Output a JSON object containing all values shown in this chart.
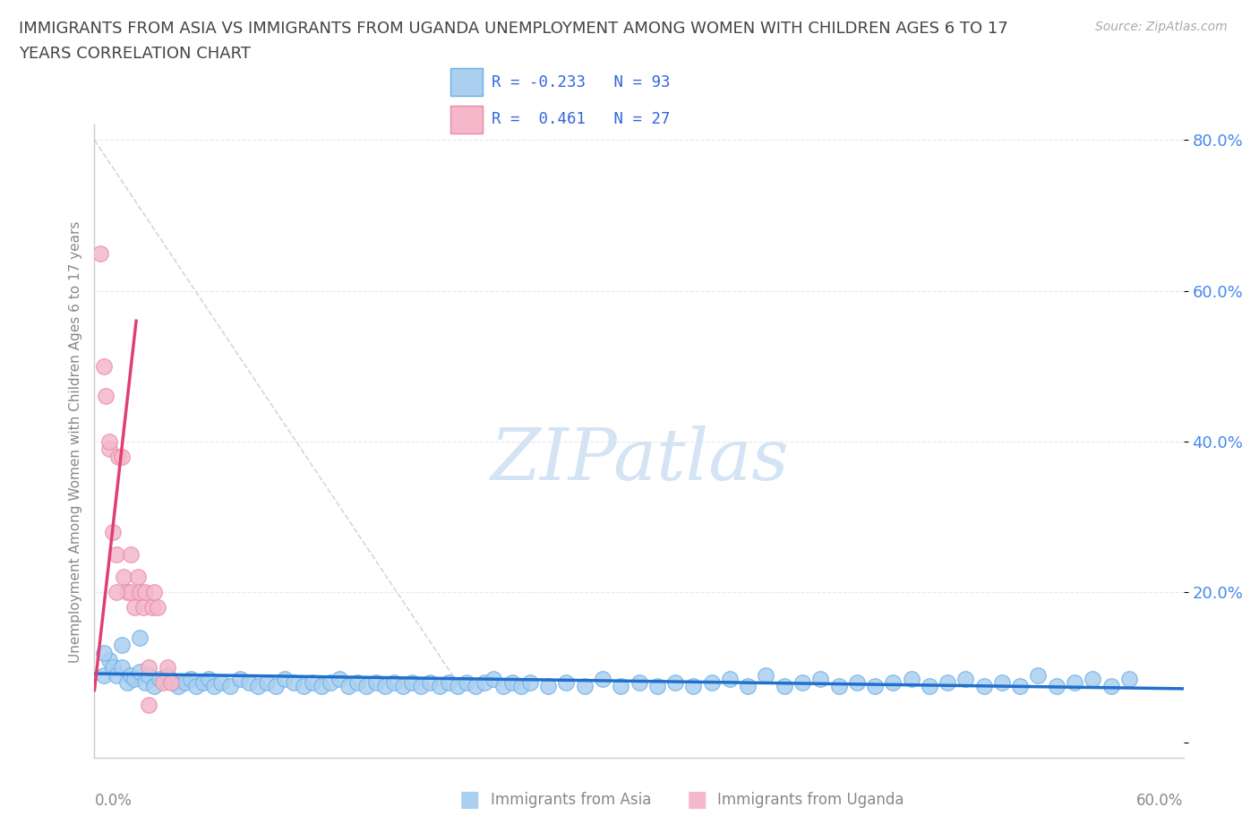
{
  "title_line1": "IMMIGRANTS FROM ASIA VS IMMIGRANTS FROM UGANDA UNEMPLOYMENT AMONG WOMEN WITH CHILDREN AGES 6 TO 17",
  "title_line2": "YEARS CORRELATION CHART",
  "source_text": "Source: ZipAtlas.com",
  "ylabel": "Unemployment Among Women with Children Ages 6 to 17 years",
  "xmin": 0.0,
  "xmax": 0.6,
  "ymin": -0.02,
  "ymax": 0.82,
  "yticks": [
    0.0,
    0.2,
    0.4,
    0.6,
    0.8
  ],
  "ytick_labels": [
    "",
    "20.0%",
    "40.0%",
    "60.0%",
    "80.0%"
  ],
  "asia_color": "#aacfef",
  "asia_edge_color": "#6aaee8",
  "uganda_color": "#f4b8ca",
  "uganda_edge_color": "#e888aa",
  "asia_line_color": "#2070cc",
  "uganda_line_color": "#e04070",
  "trend_dashed_color": "#cccccc",
  "watermark_color": "#d4e4f5",
  "R_asia": -0.233,
  "N_asia": 93,
  "R_uganda": 0.461,
  "N_uganda": 27,
  "tick_color": "#4488ee",
  "label_color": "#888888",
  "title_color": "#444444",
  "legend_text_color": "#3366dd",
  "grid_color": "#e8e8e8",
  "asia_x": [
    0.005,
    0.008,
    0.01,
    0.012,
    0.015,
    0.018,
    0.02,
    0.022,
    0.025,
    0.028,
    0.03,
    0.033,
    0.036,
    0.04,
    0.043,
    0.046,
    0.05,
    0.053,
    0.056,
    0.06,
    0.063,
    0.066,
    0.07,
    0.075,
    0.08,
    0.085,
    0.09,
    0.095,
    0.1,
    0.105,
    0.11,
    0.115,
    0.12,
    0.125,
    0.13,
    0.135,
    0.14,
    0.145,
    0.15,
    0.155,
    0.16,
    0.165,
    0.17,
    0.175,
    0.18,
    0.185,
    0.19,
    0.195,
    0.2,
    0.205,
    0.21,
    0.215,
    0.22,
    0.225,
    0.23,
    0.235,
    0.24,
    0.25,
    0.26,
    0.27,
    0.28,
    0.29,
    0.3,
    0.31,
    0.32,
    0.33,
    0.34,
    0.35,
    0.36,
    0.37,
    0.38,
    0.39,
    0.4,
    0.41,
    0.42,
    0.43,
    0.44,
    0.45,
    0.46,
    0.47,
    0.48,
    0.49,
    0.5,
    0.51,
    0.52,
    0.53,
    0.54,
    0.55,
    0.56,
    0.57,
    0.005,
    0.015,
    0.025
  ],
  "asia_y": [
    0.09,
    0.11,
    0.1,
    0.09,
    0.1,
    0.08,
    0.09,
    0.085,
    0.095,
    0.08,
    0.09,
    0.075,
    0.085,
    0.09,
    0.08,
    0.075,
    0.08,
    0.085,
    0.075,
    0.08,
    0.085,
    0.075,
    0.08,
    0.075,
    0.085,
    0.08,
    0.075,
    0.08,
    0.075,
    0.085,
    0.08,
    0.075,
    0.08,
    0.075,
    0.08,
    0.085,
    0.075,
    0.08,
    0.075,
    0.08,
    0.075,
    0.08,
    0.075,
    0.08,
    0.075,
    0.08,
    0.075,
    0.08,
    0.075,
    0.08,
    0.075,
    0.08,
    0.085,
    0.075,
    0.08,
    0.075,
    0.08,
    0.075,
    0.08,
    0.075,
    0.085,
    0.075,
    0.08,
    0.075,
    0.08,
    0.075,
    0.08,
    0.085,
    0.075,
    0.09,
    0.075,
    0.08,
    0.085,
    0.075,
    0.08,
    0.075,
    0.08,
    0.085,
    0.075,
    0.08,
    0.085,
    0.075,
    0.08,
    0.075,
    0.09,
    0.075,
    0.08,
    0.085,
    0.075,
    0.085,
    0.12,
    0.13,
    0.14
  ],
  "uganda_x": [
    0.003,
    0.005,
    0.006,
    0.008,
    0.01,
    0.012,
    0.013,
    0.015,
    0.016,
    0.018,
    0.02,
    0.02,
    0.022,
    0.024,
    0.025,
    0.027,
    0.028,
    0.03,
    0.032,
    0.033,
    0.035,
    0.038,
    0.04,
    0.042,
    0.008,
    0.012,
    0.03
  ],
  "uganda_y": [
    0.65,
    0.5,
    0.46,
    0.39,
    0.28,
    0.25,
    0.38,
    0.38,
    0.22,
    0.2,
    0.25,
    0.2,
    0.18,
    0.22,
    0.2,
    0.18,
    0.2,
    0.1,
    0.18,
    0.2,
    0.18,
    0.08,
    0.1,
    0.08,
    0.4,
    0.2,
    0.05
  ]
}
